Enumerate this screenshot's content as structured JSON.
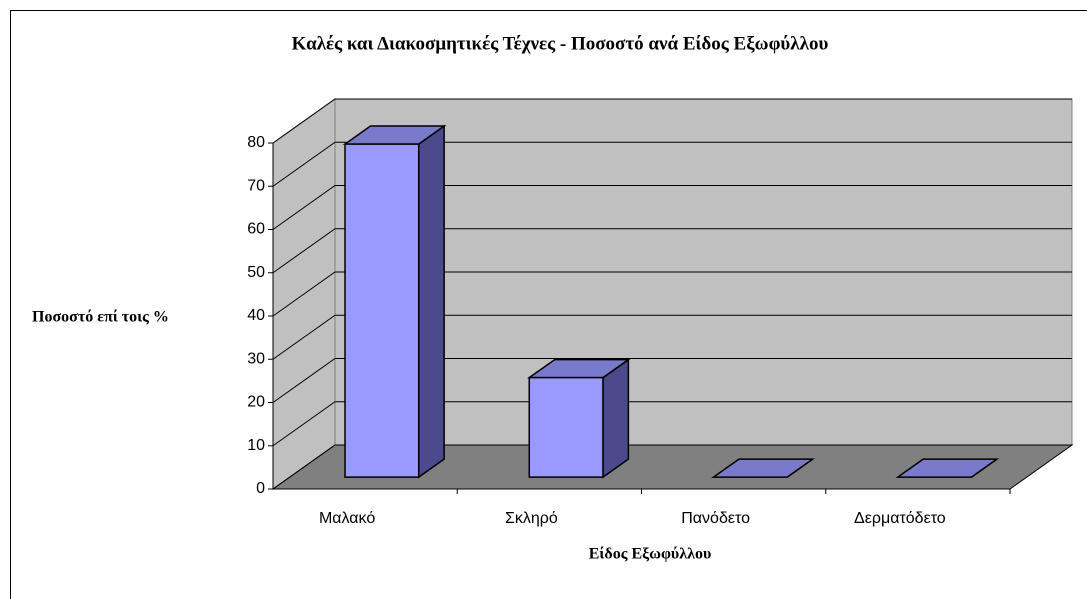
{
  "chart_data": {
    "type": "bar",
    "title": "Καλές και Διακοσμητικές Τέχνες - Ποσοστό ανά Είδος Εξωφύλλου",
    "xlabel": "Είδος Εξωφύλλου",
    "ylabel": "Ποσοστό επί τοις %",
    "categories": [
      "Μαλακό",
      "Σκληρό",
      "Πανόδετο",
      "Δερματόδετο"
    ],
    "values": [
      77,
      23,
      0,
      0
    ],
    "color": "#9999ff",
    "ylim": [
      0,
      80
    ],
    "yticks": [
      0,
      10,
      20,
      30,
      40,
      50,
      60,
      70,
      80
    ],
    "grid": true
  }
}
